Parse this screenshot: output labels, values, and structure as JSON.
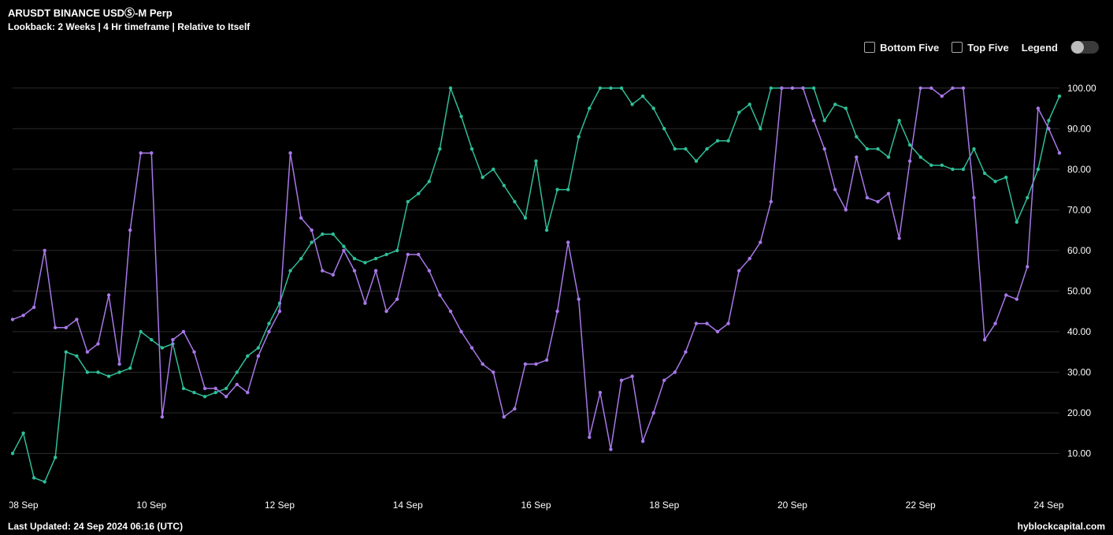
{
  "header": {
    "title": "ARUSDT BINANCE USDⓈ-M Perp",
    "subtitle": "Lookback: 2 Weeks | 4 Hr timeframe | Relative to Itself"
  },
  "controls": {
    "bottom_five_label": "Bottom Five",
    "top_five_label": "Top Five",
    "legend_label": "Legend"
  },
  "footer": {
    "last_updated": "Last Updated: 24 Sep 2024 06:16 (UTC)",
    "brand": "hyblockcapital.com"
  },
  "chart": {
    "type": "line",
    "background_color": "#000000",
    "grid_color": "#2b2b2b",
    "axis_label_color": "#ffffff",
    "axis_label_fontsize": 12,
    "ylim": [
      0,
      105
    ],
    "ytick_step": 10,
    "y_tick_labels": [
      "10.00",
      "20.00",
      "30.00",
      "40.00",
      "50.00",
      "60.00",
      "70.00",
      "80.00",
      "90.00",
      "100.00"
    ],
    "y_tick_values": [
      10,
      20,
      30,
      40,
      50,
      60,
      70,
      80,
      90,
      100
    ],
    "x_total_points": 99,
    "x_ticks": [
      {
        "index": 1,
        "label": "08 Sep"
      },
      {
        "index": 13,
        "label": "10 Sep"
      },
      {
        "index": 25,
        "label": "12 Sep"
      },
      {
        "index": 37,
        "label": "14 Sep"
      },
      {
        "index": 49,
        "label": "16 Sep"
      },
      {
        "index": 61,
        "label": "18 Sep"
      },
      {
        "index": 73,
        "label": "20 Sep"
      },
      {
        "index": 85,
        "label": "22 Sep"
      },
      {
        "index": 97,
        "label": "24 Sep"
      }
    ],
    "series": [
      {
        "name": "green-series",
        "color": "#2fbf99",
        "marker_radius": 2.2,
        "values": [
          10,
          15,
          4,
          3,
          9,
          35,
          34,
          30,
          30,
          29,
          30,
          31,
          40,
          38,
          36,
          37,
          26,
          25,
          24,
          25,
          26,
          30,
          34,
          36,
          42,
          47,
          55,
          58,
          62,
          64,
          64,
          61,
          58,
          57,
          58,
          59,
          60,
          72,
          74,
          77,
          85,
          100,
          93,
          85,
          78,
          80,
          76,
          72,
          68,
          82,
          65,
          75,
          75,
          88,
          95,
          100,
          100,
          100,
          96,
          98,
          95,
          90,
          85,
          85,
          82,
          85,
          87,
          87,
          94,
          96,
          90,
          100,
          100,
          100,
          100,
          100,
          92,
          96,
          95,
          88,
          85,
          85,
          83,
          92,
          86,
          83,
          81,
          81,
          80,
          80,
          85,
          79,
          77,
          78,
          67,
          73,
          80,
          92,
          98
        ]
      },
      {
        "name": "purple-series",
        "color": "#a878e8",
        "marker_radius": 2.2,
        "values": [
          43,
          44,
          46,
          60,
          41,
          41,
          43,
          35,
          37,
          49,
          32,
          65,
          84,
          84,
          19,
          38,
          40,
          35,
          26,
          26,
          24,
          27,
          25,
          34,
          40,
          45,
          84,
          68,
          65,
          55,
          54,
          60,
          55,
          47,
          55,
          45,
          48,
          59,
          59,
          55,
          49,
          45,
          40,
          36,
          32,
          30,
          19,
          21,
          32,
          32,
          33,
          45,
          62,
          48,
          14,
          25,
          11,
          28,
          29,
          13,
          20,
          28,
          30,
          35,
          42,
          42,
          40,
          42,
          55,
          58,
          62,
          72,
          100,
          100,
          100,
          92,
          85,
          75,
          70,
          83,
          73,
          72,
          74,
          63,
          82,
          100,
          100,
          98,
          100,
          100,
          73,
          38,
          42,
          49,
          48,
          56,
          95,
          90,
          84
        ]
      }
    ]
  }
}
